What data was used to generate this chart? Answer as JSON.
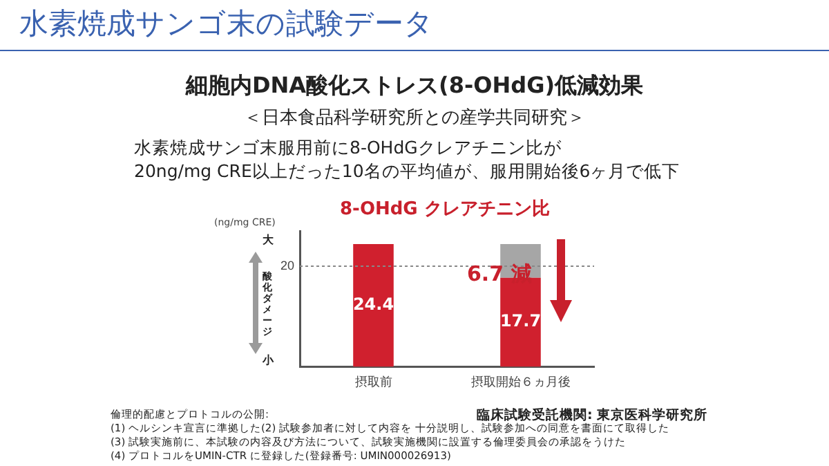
{
  "chart_data": {
    "type": "bar",
    "title": "水素焼成サンゴ末の試験データ",
    "subtitle": "細胞内DNA酸化ストレス(8-OHdG)低減効果",
    "ylabel": "(ng/mg CRE)",
    "categories": [
      "摂取前",
      "摂取開始６ヵ月後"
    ],
    "stacked": true,
    "series": [
      {
        "color": "#d0202e",
        "values": [
          24.4,
          17.7
        ],
        "value_labels": [
          "24.4",
          "17.7"
        ]
      },
      {
        "color": "#a6a6a6",
        "values": [
          null,
          6.7
        ]
      }
    ],
    "ylim": [
      0,
      27
    ],
    "yticks": [
      20
    ],
    "ref_lines": [
      {
        "axis": "y",
        "value": 20,
        "color": "#888888",
        "line_style": "dotted"
      }
    ],
    "grid": false,
    "legend": false,
    "annotations": [
      "＜日本食品科学研究所との産学共同研究＞",
      "水素焼成サンゴ末服用前に8-OHdGクレアチニン比が",
      "20ng/mg CRE以上だった10名の平均値が、服用開始後6ヶ月で低下",
      "8-OHdG クレアチニン比",
      "大",
      "酸化ダメージ",
      "小",
      "6.7 減",
      "臨床試験受託機関: 東京医科学研究所",
      "倫理的配慮とプロトコルの公開:",
      "(1) ヘルシンキ宣言に準拠した(2) 試験参加者に対して内容を 十分説明し、試験参加への同意を書面にて取得した",
      "(3) 試験実施前に、本試験の内容及び方法について、試験実施機関に設置する倫理委員会の承認をうけた",
      "(4) プロトコルをUMIN-CTR に登録した(登録番号: UMIN000026913)"
    ]
  }
}
